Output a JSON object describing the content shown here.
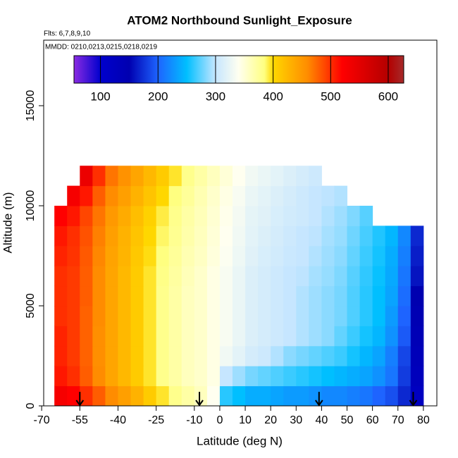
{
  "chart_data": {
    "type": "heatmap",
    "title": "ATOM2 Northbound Sunlight_Exposure",
    "subtitle": "Flts: 6,7,8,9,10",
    "annotation": "MMDD: 0210,0213,0215,0218,0219",
    "xlabel": "Latitude (deg N)",
    "ylabel": "Altitude (m)",
    "xlim": [
      -69.2,
      85.3
    ],
    "ylim": [
      0,
      18275
    ],
    "xticks": [
      -70,
      -55,
      -40,
      -25,
      -10,
      0,
      10,
      20,
      30,
      40,
      50,
      60,
      70,
      80
    ],
    "yticks": [
      0,
      5000,
      10000,
      15000
    ],
    "colorbar_lim": [
      54,
      627
    ],
    "colorbar_ticks": [
      100,
      200,
      300,
      400,
      500,
      600
    ],
    "colorscale": [
      [
        54,
        "#8a2be2"
      ],
      [
        100,
        "#0000cd"
      ],
      [
        150,
        "#0000b0"
      ],
      [
        200,
        "#1e64ff"
      ],
      [
        250,
        "#00bfff"
      ],
      [
        300,
        "#c6e6ff"
      ],
      [
        340,
        "#fffff0"
      ],
      [
        385,
        "#ffff80"
      ],
      [
        400,
        "#ffd700"
      ],
      [
        460,
        "#ff8c00"
      ],
      [
        520,
        "#ff0000"
      ],
      [
        600,
        "#b40000"
      ],
      [
        627,
        "#a52a2a"
      ]
    ],
    "x_bins": [
      -65,
      -60,
      -55,
      -50,
      -45,
      -40,
      -35,
      -30,
      -25,
      -20,
      -15,
      -10,
      -5,
      0,
      5,
      10,
      15,
      20,
      25,
      30,
      35,
      40,
      45,
      50,
      55,
      60,
      65,
      70,
      75,
      80
    ],
    "y_bins": [
      0,
      1000,
      2000,
      3000,
      4000,
      5000,
      6000,
      7000,
      8000,
      9000,
      10000,
      11000,
      12000
    ],
    "z": [
      [
        530,
        520,
        500,
        480,
        460,
        445,
        430,
        410,
        395,
        380,
        370,
        360,
        340,
        260,
        250,
        240,
        240,
        235,
        230,
        230,
        225,
        220,
        220,
        215,
        210,
        200,
        190,
        170,
        120
      ],
      [
        510,
        500,
        480,
        460,
        440,
        425,
        410,
        395,
        380,
        370,
        360,
        355,
        345,
        300,
        290,
        280,
        275,
        270,
        265,
        260,
        255,
        250,
        245,
        240,
        235,
        225,
        210,
        180,
        130
      ],
      [
        505,
        495,
        478,
        458,
        440,
        425,
        410,
        395,
        380,
        370,
        360,
        355,
        345,
        330,
        320,
        310,
        305,
        295,
        285,
        280,
        275,
        270,
        265,
        255,
        245,
        235,
        215,
        185,
        135
      ],
      [
        505,
        495,
        478,
        458,
        440,
        425,
        410,
        395,
        380,
        370,
        360,
        355,
        345,
        335,
        325,
        315,
        310,
        305,
        300,
        295,
        290,
        285,
        275,
        265,
        255,
        245,
        225,
        195,
        140
      ],
      [
        500,
        495,
        478,
        460,
        440,
        425,
        410,
        395,
        380,
        370,
        360,
        355,
        345,
        335,
        325,
        315,
        310,
        305,
        300,
        295,
        290,
        285,
        280,
        270,
        260,
        250,
        230,
        200,
        145
      ],
      [
        500,
        495,
        480,
        460,
        440,
        425,
        410,
        395,
        380,
        370,
        360,
        355,
        345,
        335,
        325,
        315,
        310,
        305,
        300,
        295,
        290,
        285,
        280,
        270,
        260,
        250,
        235,
        205,
        150
      ],
      [
        500,
        495,
        480,
        460,
        440,
        425,
        410,
        395,
        382,
        372,
        362,
        355,
        345,
        335,
        325,
        315,
        310,
        305,
        300,
        298,
        292,
        288,
        282,
        272,
        262,
        252,
        238,
        210,
        160
      ],
      [
        505,
        498,
        482,
        462,
        442,
        428,
        412,
        398,
        385,
        375,
        365,
        358,
        348,
        338,
        328,
        318,
        312,
        308,
        303,
        300,
        295,
        290,
        285,
        275,
        265,
        255,
        240,
        215,
        165
      ],
      [
        510,
        500,
        485,
        465,
        445,
        430,
        415,
        400,
        388,
        378,
        368,
        360,
        350,
        340,
        330,
        320,
        315,
        310,
        305,
        300,
        298,
        292,
        288,
        278,
        268,
        258,
        245,
        220,
        170
      ],
      [
        520,
        510,
        490,
        470,
        450,
        435,
        420,
        405,
        392,
        380,
        370,
        362,
        352,
        342,
        332,
        322,
        318,
        312,
        308,
        305,
        300,
        295,
        290,
        282,
        272,
        null,
        null,
        null,
        null
      ],
      [
        null,
        530,
        510,
        480,
        460,
        445,
        430,
        415,
        400,
        385,
        375,
        365,
        355,
        345,
        335,
        325,
        320,
        315,
        310,
        305,
        300,
        298,
        295,
        null,
        null,
        null,
        null,
        null,
        null
      ],
      [
        null,
        null,
        540,
        500,
        470,
        455,
        440,
        425,
        410,
        395,
        380,
        370,
        360,
        350,
        340,
        330,
        325,
        320,
        315,
        310,
        305,
        null,
        null,
        null,
        null,
        null,
        null,
        null,
        null
      ]
    ],
    "arrows": [
      -55,
      -8,
      39,
      76
    ],
    "arrow_altitude": 700
  }
}
